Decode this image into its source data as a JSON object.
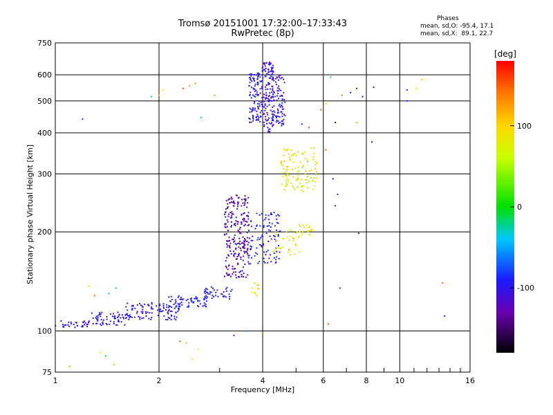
{
  "header": {
    "title_line1": "Tromsø 20151001 17:32:00–17:33:43",
    "title_line2": "RwPretec (8p)"
  },
  "phases": {
    "heading": "Phases",
    "line_o": "mean, sd,O: -95.4, 17.1",
    "line_x": "mean, sd,X:  89.1, 22.7"
  },
  "chart_data": {
    "type": "scatter",
    "xlabel": "Frequency [MHz]",
    "ylabel": "Stationary phase Virtual Height [km]",
    "xscale": "log",
    "yscale": "log",
    "xlim": [
      1,
      16
    ],
    "ylim": [
      75,
      750
    ],
    "x_ticks": [
      1,
      2,
      4,
      6,
      8,
      10,
      16
    ],
    "y_ticks": [
      75,
      100,
      200,
      300,
      400,
      500,
      600,
      750
    ],
    "grid_x": [
      2,
      4,
      6,
      8,
      10
    ],
    "grid_y": [
      100,
      200,
      300,
      400,
      500,
      600
    ],
    "minor_x": [
      3,
      5,
      7,
      9,
      11,
      12,
      13,
      14,
      15
    ],
    "colorbar": {
      "label": "[deg]",
      "range": [
        -180,
        180
      ],
      "ticks": [
        -100,
        0,
        100
      ]
    },
    "clusters": [
      {
        "f": [
          1.0,
          1.25
        ],
        "h": [
          102,
          108
        ],
        "phase": [
          -115,
          -95
        ],
        "n": 30
      },
      {
        "f": [
          1.25,
          1.6
        ],
        "h": [
          104,
          114
        ],
        "phase": [
          -110,
          -90
        ],
        "n": 60
      },
      {
        "f": [
          1.6,
          2.3
        ],
        "h": [
          108,
          122
        ],
        "phase": [
          -110,
          -85
        ],
        "n": 110
      },
      {
        "f": [
          2.1,
          2.8
        ],
        "h": [
          118,
          128
        ],
        "phase": [
          -105,
          -80
        ],
        "n": 60
      },
      {
        "f": [
          2.7,
          3.3
        ],
        "h": [
          125,
          136
        ],
        "phase": [
          -105,
          -80
        ],
        "n": 40
      },
      {
        "f": [
          3.1,
          3.65
        ],
        "h": [
          145,
          260
        ],
        "phase": [
          -150,
          -95
        ],
        "n": 230
      },
      {
        "f": [
          3.6,
          4.5
        ],
        "h": [
          160,
          230
        ],
        "phase": [
          -110,
          -75
        ],
        "n": 110
      },
      {
        "f": [
          4.3,
          5.2
        ],
        "h": [
          170,
          205
        ],
        "phase": [
          55,
          120
        ],
        "n": 35
      },
      {
        "f": [
          5.1,
          5.6
        ],
        "h": [
          195,
          210
        ],
        "phase": [
          80,
          95
        ],
        "n": 20
      },
      {
        "f": [
          3.65,
          3.95
        ],
        "h": [
          430,
          610
        ],
        "phase": [
          -120,
          -80
        ],
        "n": 100
      },
      {
        "f": [
          3.95,
          4.3
        ],
        "h": [
          400,
          660
        ],
        "phase": [
          -130,
          -80
        ],
        "n": 150
      },
      {
        "f": [
          4.25,
          4.65
        ],
        "h": [
          420,
          600
        ],
        "phase": [
          -120,
          -80
        ],
        "n": 90
      },
      {
        "f": [
          4.5,
          5.8
        ],
        "h": [
          265,
          360
        ],
        "phase": [
          40,
          110
        ],
        "n": 110
      },
      {
        "f": [
          3.7,
          3.9
        ],
        "h": [
          128,
          140
        ],
        "phase": [
          70,
          110
        ],
        "n": 12
      }
    ],
    "scattered_points": [
      {
        "f": 1.1,
        "h": 78,
        "phase": 120
      },
      {
        "f": 1.2,
        "h": 440,
        "phase": -100
      },
      {
        "f": 1.25,
        "h": 137,
        "phase": 100
      },
      {
        "f": 1.3,
        "h": 128,
        "phase": 150
      },
      {
        "f": 1.35,
        "h": 86,
        "phase": 60
      },
      {
        "f": 1.4,
        "h": 84,
        "phase": 0
      },
      {
        "f": 1.43,
        "h": 130,
        "phase": -30
      },
      {
        "f": 1.48,
        "h": 79,
        "phase": 40
      },
      {
        "f": 1.5,
        "h": 135,
        "phase": -50
      },
      {
        "f": 1.9,
        "h": 515,
        "phase": -20
      },
      {
        "f": 2.0,
        "h": 520,
        "phase": 110
      },
      {
        "f": 2.05,
        "h": 540,
        "phase": 60
      },
      {
        "f": 2.35,
        "h": 545,
        "phase": 150
      },
      {
        "f": 2.45,
        "h": 555,
        "phase": 120
      },
      {
        "f": 2.55,
        "h": 565,
        "phase": 130
      },
      {
        "f": 2.65,
        "h": 445,
        "phase": -40
      },
      {
        "f": 2.9,
        "h": 520,
        "phase": 30
      },
      {
        "f": 2.3,
        "h": 93,
        "phase": 150
      },
      {
        "f": 2.4,
        "h": 92,
        "phase": 120
      },
      {
        "f": 2.5,
        "h": 82,
        "phase": 100
      },
      {
        "f": 2.6,
        "h": 88,
        "phase": 60
      },
      {
        "f": 3.3,
        "h": 97,
        "phase": -130
      },
      {
        "f": 3.6,
        "h": 100,
        "phase": -60
      },
      {
        "f": 4.0,
        "h": 98,
        "phase": 140
      },
      {
        "f": 5.2,
        "h": 425,
        "phase": -100
      },
      {
        "f": 5.45,
        "h": 415,
        "phase": 160
      },
      {
        "f": 5.9,
        "h": 470,
        "phase": 150
      },
      {
        "f": 6.1,
        "h": 490,
        "phase": 100
      },
      {
        "f": 6.3,
        "h": 590,
        "phase": -20
      },
      {
        "f": 6.5,
        "h": 430,
        "phase": -120
      },
      {
        "f": 6.8,
        "h": 520,
        "phase": 140
      },
      {
        "f": 7.2,
        "h": 530,
        "phase": -100
      },
      {
        "f": 7.5,
        "h": 545,
        "phase": -120
      },
      {
        "f": 7.8,
        "h": 515,
        "phase": -100
      },
      {
        "f": 7.5,
        "h": 430,
        "phase": 110
      },
      {
        "f": 8.3,
        "h": 375,
        "phase": -100
      },
      {
        "f": 8.4,
        "h": 550,
        "phase": -100
      },
      {
        "f": 6.4,
        "h": 290,
        "phase": -110
      },
      {
        "f": 6.6,
        "h": 260,
        "phase": -80
      },
      {
        "f": 6.5,
        "h": 240,
        "phase": -120
      },
      {
        "f": 6.7,
        "h": 135,
        "phase": -120
      },
      {
        "f": 7.6,
        "h": 198,
        "phase": -140
      },
      {
        "f": 6.1,
        "h": 355,
        "phase": 150
      },
      {
        "f": 10.5,
        "h": 540,
        "phase": -100
      },
      {
        "f": 10.5,
        "h": 500,
        "phase": -100
      },
      {
        "f": 11.2,
        "h": 545,
        "phase": 100
      },
      {
        "f": 11.6,
        "h": 580,
        "phase": 110
      },
      {
        "f": 13.3,
        "h": 140,
        "phase": 140
      },
      {
        "f": 13.5,
        "h": 111,
        "phase": -120
      },
      {
        "f": 6.2,
        "h": 105,
        "phase": 150
      }
    ]
  }
}
